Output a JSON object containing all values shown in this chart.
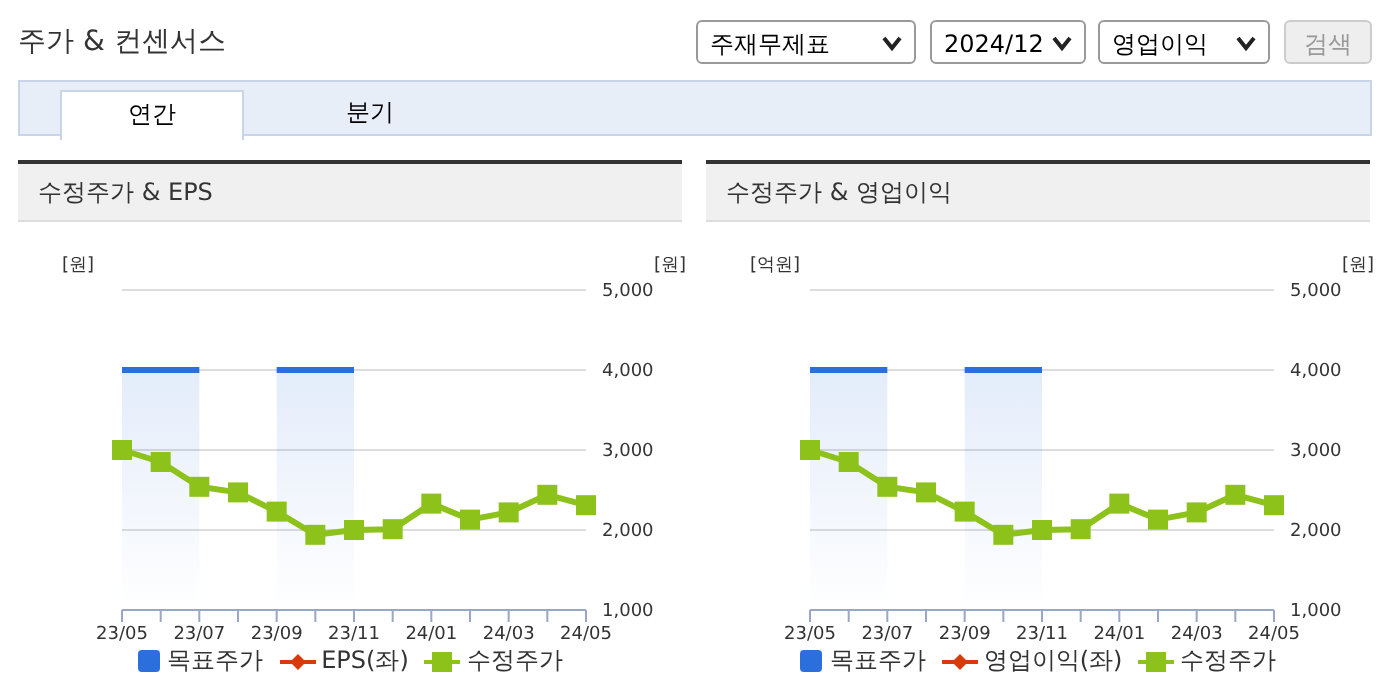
{
  "chart_data": [
    {
      "type": "line",
      "title": "수정주가 & EPS",
      "ylabel": "[원]",
      "y2label": "[원]",
      "annotations": [
        "주가 & 컨센서스",
        "주재무제표",
        "2024/12",
        "영업이익",
        "검색",
        "연간",
        "분기"
      ],
      "categories": [
        "23/05",
        null,
        "23/07",
        null,
        "23/09",
        null,
        "23/11",
        null,
        "24/01",
        null,
        "24/03",
        null,
        "24/05"
      ],
      "series": [
        {
          "name": "목표주가",
          "type": "area",
          "color": "#2a6fdb",
          "axis": "y2",
          "values": [
            4000,
            4000,
            4000,
            null,
            4000,
            4000,
            4000,
            null,
            null,
            null,
            null,
            null,
            null
          ]
        },
        {
          "name": "EPS(좌)",
          "color": "#d93a0b",
          "axis": "y",
          "marker": "diamond",
          "values": [
            null,
            null,
            null,
            null,
            null,
            null,
            null,
            null,
            null,
            null,
            null,
            null,
            null
          ]
        },
        {
          "name": "수정주가",
          "color": "#8cc21a",
          "axis": "y2",
          "marker": "square",
          "values": [
            3000,
            2850,
            2540,
            2470,
            2230,
            1940,
            2000,
            2010,
            2330,
            2130,
            2220,
            2440,
            2310
          ]
        }
      ],
      "y2lim": [
        1000,
        5000
      ],
      "y2ticks": [
        {
          "value": 1000,
          "label": "1,000"
        },
        {
          "value": 2000,
          "label": "2,000"
        },
        {
          "value": 3000,
          "label": "3,000"
        },
        {
          "value": 4000,
          "label": "4,000"
        },
        {
          "value": 5000,
          "label": "5,000"
        }
      ],
      "grid": "y",
      "legend": "bottom"
    },
    {
      "type": "line",
      "title": "수정주가 & 영업이익",
      "ylabel": "[억원]",
      "y2label": "[원]",
      "categories": [
        "23/05",
        null,
        "23/07",
        null,
        "23/09",
        null,
        "23/11",
        null,
        "24/01",
        null,
        "24/03",
        null,
        "24/05"
      ],
      "series": [
        {
          "name": "목표주가",
          "type": "area",
          "color": "#2a6fdb",
          "axis": "y2",
          "values": [
            4000,
            4000,
            4000,
            null,
            4000,
            4000,
            4000,
            null,
            null,
            null,
            null,
            null,
            null
          ]
        },
        {
          "name": "영업이익(좌)",
          "color": "#d93a0b",
          "axis": "y",
          "marker": "diamond",
          "values": [
            null,
            null,
            null,
            null,
            null,
            null,
            null,
            null,
            null,
            null,
            null,
            null,
            null
          ]
        },
        {
          "name": "수정주가",
          "color": "#8cc21a",
          "axis": "y2",
          "marker": "square",
          "values": [
            3000,
            2850,
            2540,
            2470,
            2230,
            1940,
            2000,
            2010,
            2330,
            2130,
            2220,
            2440,
            2310
          ]
        }
      ],
      "y2lim": [
        1000,
        5000
      ],
      "y2ticks": [
        {
          "value": 1000,
          "label": "1,000"
        },
        {
          "value": 2000,
          "label": "2,000"
        },
        {
          "value": 3000,
          "label": "3,000"
        },
        {
          "value": 4000,
          "label": "4,000"
        },
        {
          "value": 5000,
          "label": "5,000"
        }
      ],
      "grid": "y",
      "legend": "bottom"
    }
  ]
}
